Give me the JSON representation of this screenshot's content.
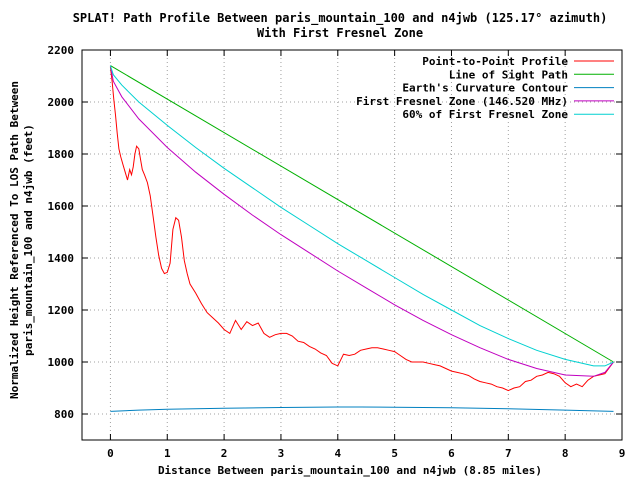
{
  "chart_data": {
    "type": "line",
    "title_line1": "SPLAT! Path Profile Between paris_mountain_100 and n4jwb (125.17° azimuth)",
    "title_line2": "With First Fresnel Zone",
    "xlabel": "Distance Between paris_mountain_100 and n4jwb (8.85 miles)",
    "ylabel_line1": "Normalized Height Referenced To LOS Path Between",
    "ylabel_line2": "paris_mountain_100 and n4jwb (feet)",
    "xlim": [
      -0.5,
      9
    ],
    "ylim": [
      700,
      2200
    ],
    "xticks": [
      "0",
      "1",
      "2",
      "3",
      "4",
      "5",
      "6",
      "7",
      "8",
      "9"
    ],
    "xtick_values": [
      0,
      1,
      2,
      3,
      4,
      5,
      6,
      7,
      8,
      9
    ],
    "yticks": [
      "800",
      "1000",
      "1200",
      "1400",
      "1600",
      "1800",
      "2000",
      "2200"
    ],
    "ytick_values": [
      800,
      1000,
      1200,
      1400,
      1600,
      1800,
      2000,
      2200
    ],
    "grid": true,
    "legend_position": "top-right",
    "series": [
      {
        "name": "Point-to-Point Profile",
        "color": "#ff0000",
        "points": [
          [
            0,
            2135
          ],
          [
            0.03,
            2080
          ],
          [
            0.06,
            2010
          ],
          [
            0.09,
            1950
          ],
          [
            0.12,
            1880
          ],
          [
            0.15,
            1820
          ],
          [
            0.18,
            1790
          ],
          [
            0.22,
            1760
          ],
          [
            0.26,
            1730
          ],
          [
            0.3,
            1700
          ],
          [
            0.34,
            1740
          ],
          [
            0.37,
            1720
          ],
          [
            0.4,
            1750
          ],
          [
            0.43,
            1800
          ],
          [
            0.46,
            1830
          ],
          [
            0.5,
            1820
          ],
          [
            0.53,
            1780
          ],
          [
            0.56,
            1740
          ],
          [
            0.6,
            1720
          ],
          [
            0.65,
            1690
          ],
          [
            0.7,
            1640
          ],
          [
            0.75,
            1560
          ],
          [
            0.8,
            1480
          ],
          [
            0.85,
            1410
          ],
          [
            0.9,
            1360
          ],
          [
            0.95,
            1340
          ],
          [
            1.0,
            1345
          ],
          [
            1.05,
            1380
          ],
          [
            1.1,
            1510
          ],
          [
            1.15,
            1555
          ],
          [
            1.2,
            1545
          ],
          [
            1.25,
            1480
          ],
          [
            1.3,
            1390
          ],
          [
            1.35,
            1340
          ],
          [
            1.4,
            1300
          ],
          [
            1.5,
            1265
          ],
          [
            1.6,
            1225
          ],
          [
            1.7,
            1190
          ],
          [
            1.8,
            1170
          ],
          [
            1.9,
            1150
          ],
          [
            2.0,
            1125
          ],
          [
            2.1,
            1110
          ],
          [
            2.2,
            1160
          ],
          [
            2.3,
            1125
          ],
          [
            2.4,
            1155
          ],
          [
            2.5,
            1140
          ],
          [
            2.6,
            1150
          ],
          [
            2.7,
            1110
          ],
          [
            2.8,
            1095
          ],
          [
            2.9,
            1105
          ],
          [
            3.0,
            1110
          ],
          [
            3.1,
            1110
          ],
          [
            3.2,
            1100
          ],
          [
            3.3,
            1080
          ],
          [
            3.4,
            1075
          ],
          [
            3.5,
            1060
          ],
          [
            3.6,
            1050
          ],
          [
            3.7,
            1035
          ],
          [
            3.8,
            1025
          ],
          [
            3.9,
            995
          ],
          [
            4.0,
            985
          ],
          [
            4.1,
            1030
          ],
          [
            4.2,
            1025
          ],
          [
            4.3,
            1030
          ],
          [
            4.4,
            1045
          ],
          [
            4.5,
            1050
          ],
          [
            4.6,
            1055
          ],
          [
            4.7,
            1055
          ],
          [
            4.8,
            1050
          ],
          [
            4.9,
            1045
          ],
          [
            5.0,
            1040
          ],
          [
            5.1,
            1025
          ],
          [
            5.2,
            1010
          ],
          [
            5.3,
            1000
          ],
          [
            5.4,
            1000
          ],
          [
            5.5,
            1000
          ],
          [
            5.6,
            995
          ],
          [
            5.7,
            990
          ],
          [
            5.8,
            985
          ],
          [
            5.9,
            975
          ],
          [
            6.0,
            965
          ],
          [
            6.1,
            960
          ],
          [
            6.2,
            955
          ],
          [
            6.3,
            948
          ],
          [
            6.4,
            935
          ],
          [
            6.5,
            925
          ],
          [
            6.6,
            920
          ],
          [
            6.7,
            915
          ],
          [
            6.8,
            905
          ],
          [
            6.9,
            900
          ],
          [
            7.0,
            890
          ],
          [
            7.1,
            900
          ],
          [
            7.2,
            905
          ],
          [
            7.3,
            925
          ],
          [
            7.4,
            930
          ],
          [
            7.5,
            945
          ],
          [
            7.6,
            950
          ],
          [
            7.7,
            960
          ],
          [
            7.8,
            955
          ],
          [
            7.9,
            945
          ],
          [
            8.0,
            920
          ],
          [
            8.1,
            905
          ],
          [
            8.2,
            915
          ],
          [
            8.3,
            905
          ],
          [
            8.4,
            930
          ],
          [
            8.5,
            945
          ],
          [
            8.6,
            950
          ],
          [
            8.7,
            955
          ],
          [
            8.8,
            985
          ],
          [
            8.85,
            1000
          ]
        ]
      },
      {
        "name": "Line of Sight Path",
        "color": "#00b000",
        "points": [
          [
            0,
            2140
          ],
          [
            8.85,
            1000
          ]
        ]
      },
      {
        "name": "Earth's Curvature Contour",
        "color": "#0080c0",
        "points": [
          [
            0,
            810
          ],
          [
            0.5,
            815
          ],
          [
            1,
            818
          ],
          [
            2,
            822
          ],
          [
            3,
            825
          ],
          [
            4,
            827
          ],
          [
            4.4,
            827
          ],
          [
            5,
            826
          ],
          [
            6,
            824
          ],
          [
            7,
            820
          ],
          [
            8,
            815
          ],
          [
            8.85,
            810
          ]
        ]
      },
      {
        "name": "First Fresnel Zone (146.520 MHz)",
        "color": "#c000c0",
        "points": [
          [
            0,
            2140
          ],
          [
            0.05,
            2080
          ],
          [
            0.2,
            2020
          ],
          [
            0.5,
            1935
          ],
          [
            1,
            1825
          ],
          [
            1.5,
            1730
          ],
          [
            2,
            1645
          ],
          [
            2.5,
            1565
          ],
          [
            3,
            1490
          ],
          [
            3.5,
            1420
          ],
          [
            4,
            1350
          ],
          [
            4.5,
            1285
          ],
          [
            5,
            1220
          ],
          [
            5.5,
            1160
          ],
          [
            6,
            1105
          ],
          [
            6.5,
            1055
          ],
          [
            7,
            1010
          ],
          [
            7.5,
            975
          ],
          [
            8,
            950
          ],
          [
            8.5,
            945
          ],
          [
            8.7,
            960
          ],
          [
            8.85,
            1000
          ]
        ]
      },
      {
        "name": "60% of First Fresnel Zone",
        "color": "#00d0d0",
        "points": [
          [
            0,
            2140
          ],
          [
            0.05,
            2105
          ],
          [
            0.2,
            2065
          ],
          [
            0.5,
            2000
          ],
          [
            1,
            1910
          ],
          [
            1.5,
            1825
          ],
          [
            2,
            1745
          ],
          [
            2.5,
            1670
          ],
          [
            3,
            1595
          ],
          [
            3.5,
            1525
          ],
          [
            4,
            1455
          ],
          [
            4.5,
            1390
          ],
          [
            5,
            1325
          ],
          [
            5.5,
            1260
          ],
          [
            6,
            1200
          ],
          [
            6.5,
            1140
          ],
          [
            7,
            1090
          ],
          [
            7.5,
            1045
          ],
          [
            8,
            1010
          ],
          [
            8.5,
            985
          ],
          [
            8.7,
            985
          ],
          [
            8.85,
            1000
          ]
        ]
      }
    ]
  }
}
